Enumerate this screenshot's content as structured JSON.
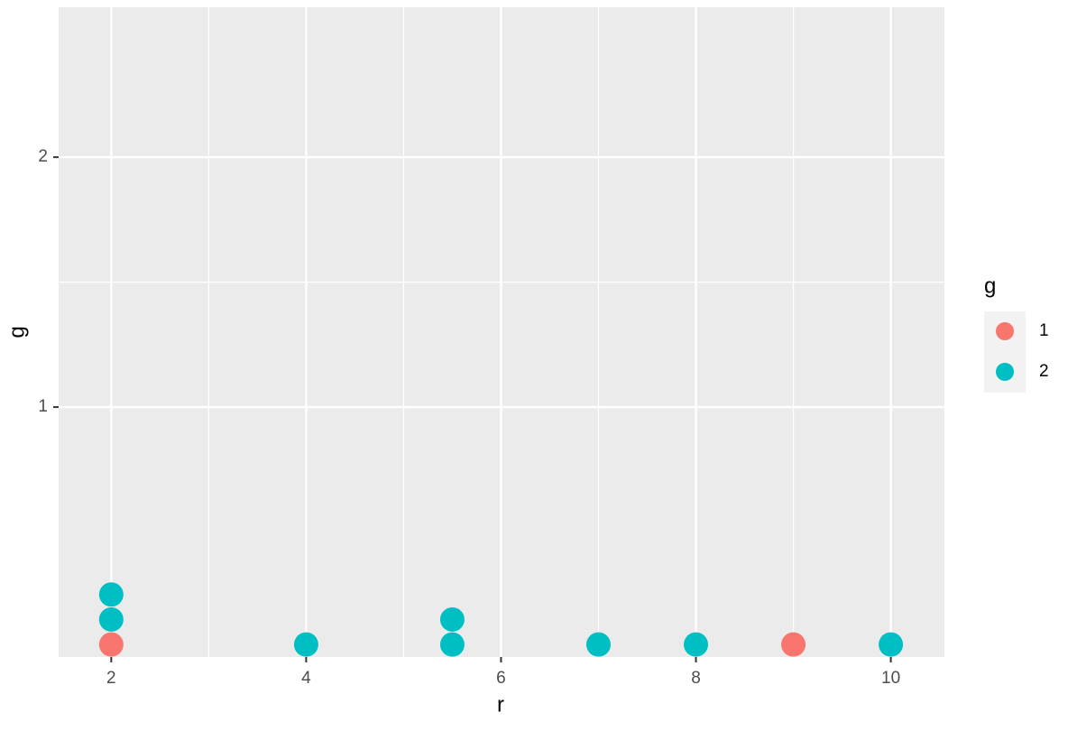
{
  "chart_data": {
    "type": "scatter",
    "x_label": "r",
    "y_label": "g",
    "legend_title": "g",
    "xlim": [
      1.46,
      10.55
    ],
    "ylim": [
      0,
      2.6
    ],
    "xticks": [
      2,
      4,
      6,
      8,
      10
    ],
    "x_minor_ticks": [
      3,
      5,
      7,
      9
    ],
    "yticks": [
      1,
      2
    ],
    "y_minor_ticks": [
      1.5
    ],
    "grid": true,
    "legend_position": "right",
    "series": [
      {
        "name": "1",
        "color": "#F8766D",
        "x": [
          2,
          9
        ],
        "values": [
          0.05,
          0.05
        ]
      },
      {
        "name": "2",
        "color": "#00BFC4",
        "x": [
          2,
          2,
          4,
          5.5,
          5.5,
          7,
          8,
          10
        ],
        "values": [
          0.15,
          0.25,
          0.05,
          0.05,
          0.15,
          0.05,
          0.05,
          0.05
        ]
      }
    ]
  }
}
